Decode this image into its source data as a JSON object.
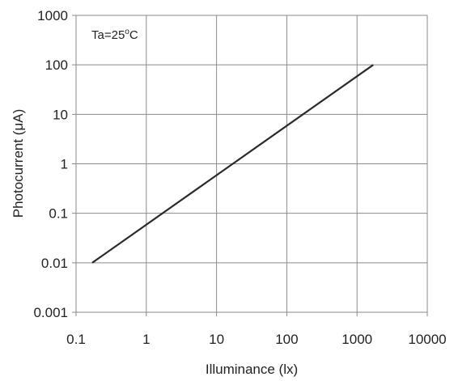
{
  "chart_data": {
    "type": "line",
    "xlabel": "Illuminance (lx)",
    "ylabel": "Photocurrent (μA)",
    "annotation": {
      "prefix": "Ta=25",
      "superscript": "o",
      "suffix": "C"
    },
    "x_scale": "log",
    "y_scale": "log",
    "xlim": [
      0.1,
      10000
    ],
    "ylim": [
      0.001,
      1000
    ],
    "x_ticks": [
      0.1,
      1,
      10,
      100,
      1000,
      10000
    ],
    "x_tick_labels": [
      "0.1",
      "1",
      "10",
      "100",
      "1000",
      "10000"
    ],
    "y_ticks": [
      0.001,
      0.01,
      0.1,
      1,
      10,
      100,
      1000
    ],
    "y_tick_labels": [
      "0.001",
      "0.01",
      "0.1",
      "1",
      "10",
      "100",
      "1000"
    ],
    "grid": true,
    "series": [
      {
        "x": [
          0.17,
          1700
        ],
        "y": [
          0.01,
          100
        ],
        "color": "#2a2a2a"
      }
    ]
  }
}
